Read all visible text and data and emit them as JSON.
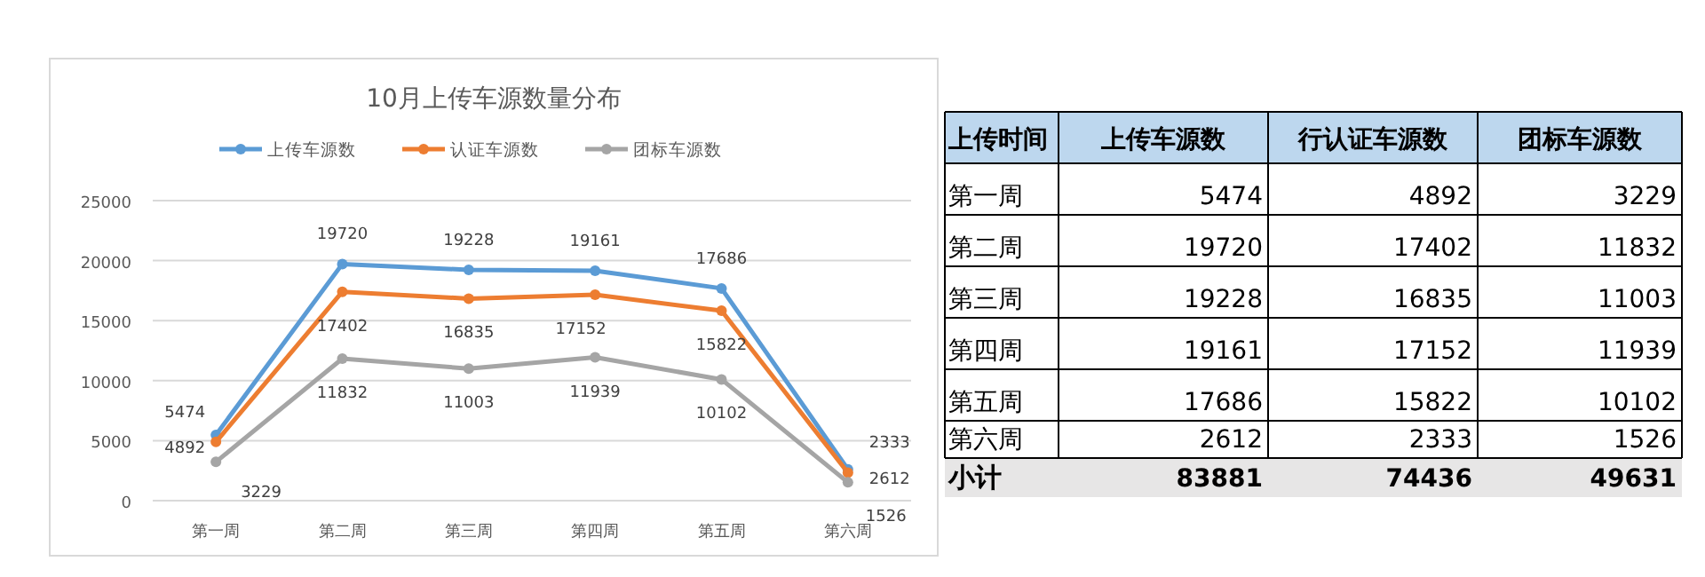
{
  "chart_data": [
    {
      "type": "line",
      "title": "10月上传车源数量分布",
      "categories": [
        "第一周",
        "第二周",
        "第三周",
        "第四周",
        "第五周",
        "第六周"
      ],
      "series": [
        {
          "name": "上传车源数",
          "color": "#5b9bd5",
          "values": [
            5474,
            19720,
            19228,
            19161,
            17686,
            2612
          ]
        },
        {
          "name": "认证车源数",
          "color": "#ed7d31",
          "values": [
            4892,
            17402,
            16835,
            17152,
            15822,
            2333
          ]
        },
        {
          "name": "团标车源数",
          "color": "#a5a5a5",
          "values": [
            3229,
            11832,
            11003,
            11939,
            10102,
            1526
          ]
        }
      ],
      "ylim": [
        0,
        25000
      ],
      "yticks": [
        0,
        5000,
        10000,
        15000,
        20000,
        25000
      ],
      "grid": "y",
      "legend": "top",
      "marker": "circle",
      "line_style": "solid",
      "data_labels": true
    },
    {
      "type": "heatmap",
      "data_labels": true,
      "ylabel": "上传时间",
      "categories": [
        "上传车源数",
        "行认证车源数",
        "团标车源数"
      ],
      "y_categories": [
        "第一周",
        "第二周",
        "第三周",
        "第四周",
        "第五周",
        "第六周",
        "小计"
      ],
      "cells": [
        [
          5474,
          4892,
          3229
        ],
        [
          19720,
          17402,
          11832
        ],
        [
          19228,
          16835,
          11003
        ],
        [
          19161,
          17152,
          11939
        ],
        [
          17686,
          15822,
          10102
        ],
        [
          2612,
          2333,
          1526
        ],
        [
          83881,
          74436,
          49631
        ]
      ]
    }
  ]
}
